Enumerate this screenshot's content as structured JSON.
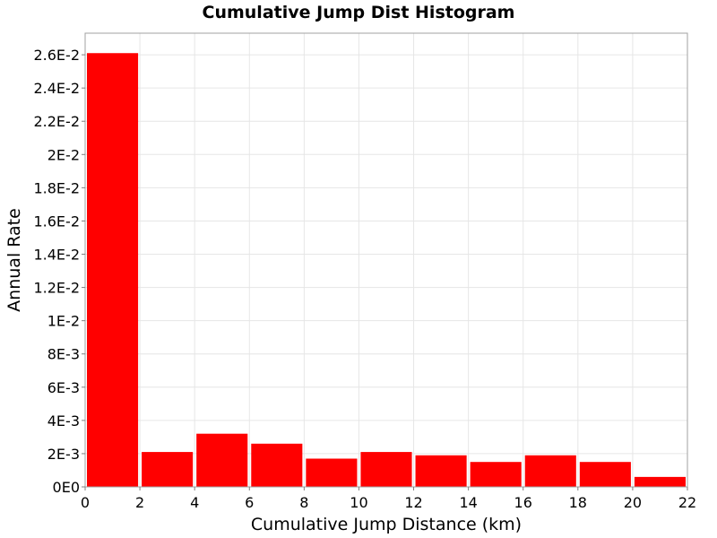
{
  "chart_data": {
    "type": "bar",
    "title": "Cumulative Jump Dist Histogram",
    "xlabel": "Cumulative Jump Distance (km)",
    "ylabel": "Annual Rate",
    "xlim": [
      0,
      22
    ],
    "ylim": [
      0,
      0.0273
    ],
    "x_ticks": [
      {
        "value": 0,
        "label": "0"
      },
      {
        "value": 2,
        "label": "2"
      },
      {
        "value": 4,
        "label": "4"
      },
      {
        "value": 6,
        "label": "6"
      },
      {
        "value": 8,
        "label": "8"
      },
      {
        "value": 10,
        "label": "10"
      },
      {
        "value": 12,
        "label": "12"
      },
      {
        "value": 14,
        "label": "14"
      },
      {
        "value": 16,
        "label": "16"
      },
      {
        "value": 18,
        "label": "18"
      },
      {
        "value": 20,
        "label": "20"
      },
      {
        "value": 22,
        "label": "22"
      }
    ],
    "y_ticks": [
      {
        "value": 0,
        "label": "0E0"
      },
      {
        "value": 0.002,
        "label": "2E-3"
      },
      {
        "value": 0.004,
        "label": "4E-3"
      },
      {
        "value": 0.006,
        "label": "6E-3"
      },
      {
        "value": 0.008,
        "label": "8E-3"
      },
      {
        "value": 0.01,
        "label": "1E-2"
      },
      {
        "value": 0.012,
        "label": "1.2E-2"
      },
      {
        "value": 0.014,
        "label": "1.4E-2"
      },
      {
        "value": 0.016,
        "label": "1.6E-2"
      },
      {
        "value": 0.018,
        "label": "1.8E-2"
      },
      {
        "value": 0.02,
        "label": "2E-2"
      },
      {
        "value": 0.022,
        "label": "2.2E-2"
      },
      {
        "value": 0.024,
        "label": "2.4E-2"
      },
      {
        "value": 0.026,
        "label": "2.6E-2"
      }
    ],
    "bars": [
      {
        "x0": 0,
        "x1": 2,
        "value": 0.0261
      },
      {
        "x0": 2,
        "x1": 4,
        "value": 0.0021
      },
      {
        "x0": 4,
        "x1": 6,
        "value": 0.0032
      },
      {
        "x0": 6,
        "x1": 8,
        "value": 0.0026
      },
      {
        "x0": 8,
        "x1": 10,
        "value": 0.0017
      },
      {
        "x0": 10,
        "x1": 12,
        "value": 0.0021
      },
      {
        "x0": 12,
        "x1": 14,
        "value": 0.0019
      },
      {
        "x0": 14,
        "x1": 16,
        "value": 0.0015
      },
      {
        "x0": 16,
        "x1": 18,
        "value": 0.0019
      },
      {
        "x0": 18,
        "x1": 20,
        "value": 0.0015
      },
      {
        "x0": 20,
        "x1": 22,
        "value": 0.0006
      }
    ],
    "bar_color": "#ff0000",
    "grid": true,
    "legend": "none"
  }
}
